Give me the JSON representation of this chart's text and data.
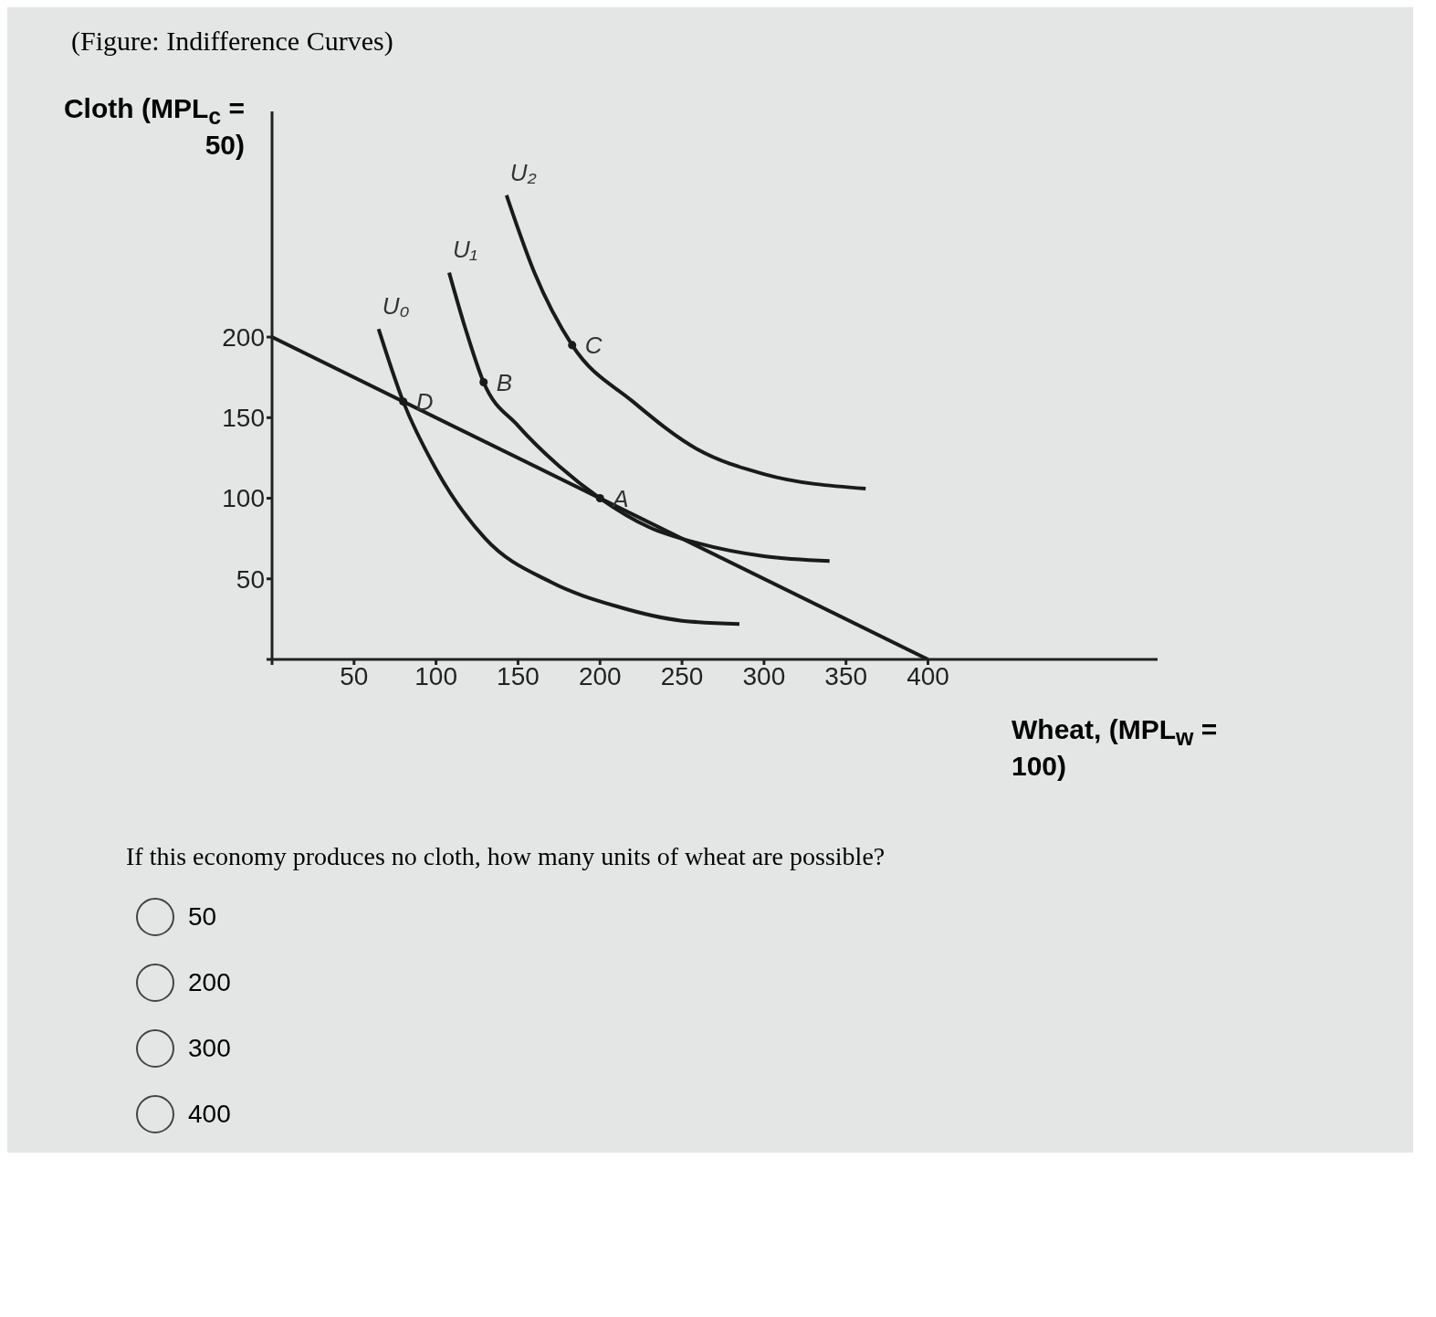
{
  "chart_data": {
    "type": "line",
    "title": "(Figure: Indifference Curves)",
    "xlabel": "Wheat, (MPL$_{w}$ = 100)",
    "ylabel": "Cloth (MPL$_{c}$ = 50)",
    "xlim": [
      0,
      540
    ],
    "ylim": [
      0,
      340
    ],
    "xticks": [
      {
        "value": 0,
        "label": null
      },
      50,
      100,
      150,
      200,
      250,
      300,
      350,
      400
    ],
    "yticks": [
      {
        "value": 0,
        "label": null
      },
      50,
      100,
      150,
      200
    ],
    "grid": false,
    "legend": false,
    "marker": "none",
    "line_style": "solid",
    "series": [
      {
        "color": "#1a1a1a",
        "x": [
          0,
          400
        ],
        "values": [
          200,
          0
        ]
      },
      {
        "name": "U₀",
        "color": "#1a1a1a",
        "x": [
          65,
          80,
          100,
          130,
          170,
          210,
          250,
          285
        ],
        "values": [
          205,
          160,
          118,
          75,
          48,
          33,
          24,
          22
        ]
      },
      {
        "name": "U₁",
        "color": "#1a1a1a",
        "x": [
          108,
          118,
          129,
          150,
          175,
          200,
          230,
          260,
          300,
          340
        ],
        "values": [
          240,
          205,
          172,
          145,
          120,
          100,
          82,
          72,
          64,
          61
        ]
      },
      {
        "name": "U₂",
        "color": "#1a1a1a",
        "x": [
          143,
          160,
          183,
          220,
          260,
          300,
          362
        ],
        "values": [
          288,
          240,
          195,
          160,
          130,
          115,
          106
        ]
      },
      {
        "type": "scatter",
        "marker": "circle",
        "color": "#1a1a1a",
        "x": [
          80,
          129,
          183,
          200
        ],
        "values": [
          160,
          172,
          195,
          100
        ]
      }
    ],
    "annotations": [
      {
        "text": "D",
        "x": 80,
        "y": 160
      },
      {
        "text": "B",
        "x": 129,
        "y": 172
      },
      {
        "text": "C",
        "x": 183,
        "y": 195
      },
      {
        "text": "A",
        "x": 200,
        "y": 100
      },
      "If this economy produces no cloth, how many units of wheat are possible?",
      "50",
      "200",
      "300",
      "400"
    ]
  }
}
